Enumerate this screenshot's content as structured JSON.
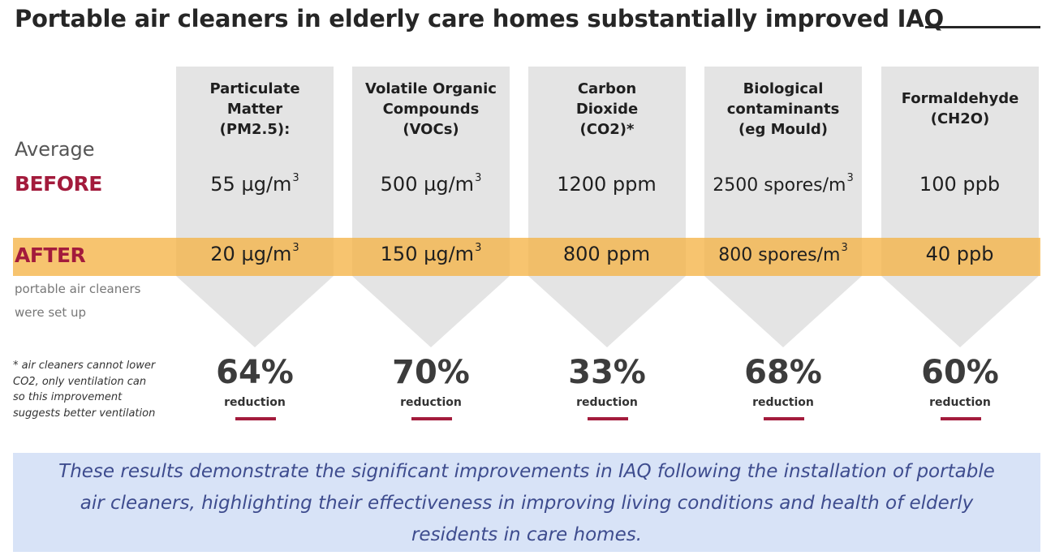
{
  "title": "Portable air cleaners in elderly care homes substantially improved IAQ",
  "row_labels": {
    "average": "Average",
    "before": "BEFORE",
    "after": "AFTER",
    "after_note": "portable air cleaners\nwere set up"
  },
  "columns": [
    {
      "heading": "Particulate\nMatter\n(PM2.5):",
      "before_num": "55 µg/m",
      "before_sup": "3",
      "after_num": "20 µg/m",
      "after_sup": "3",
      "reduction_pct": "64%",
      "reduction_label": "reduction"
    },
    {
      "heading": "Volatile Organic\nCompounds\n(VOCs)",
      "before_num": "500 µg/m",
      "before_sup": "3",
      "after_num": "150 µg/m",
      "after_sup": "3",
      "reduction_pct": "70%",
      "reduction_label": "reduction"
    },
    {
      "heading": "Carbon\nDioxide\n(CO2)*",
      "before_num": "1200 ppm",
      "before_sup": "",
      "after_num": "800 ppm",
      "after_sup": "",
      "reduction_pct": "33%",
      "reduction_label": "reduction"
    },
    {
      "heading": "Biological\ncontaminants\n(eg Mould)",
      "before_num": "2500 spores/m",
      "before_sup": "3",
      "after_num": "800 spores/m",
      "after_sup": "3",
      "reduction_pct": "68%",
      "reduction_label": "reduction"
    },
    {
      "heading": "Formaldehyde\n(CH2O)",
      "before_num": "100 ppb",
      "before_sup": "",
      "after_num": "40 ppb",
      "after_sup": "",
      "reduction_pct": "60%",
      "reduction_label": "reduction"
    }
  ],
  "footnote": "* air cleaners cannot lower\nCO2, only ventilation can\nso this improvement\nsuggests better ventilation",
  "conclusion": "These results demonstrate the significant improvements in IAQ following the installation of portable air cleaners, highlighting their effectiveness in improving living conditions and health of elderly residents in care homes.",
  "colors": {
    "accent_red": "#a31b3c",
    "highlight_band": "#f5b446",
    "arrow_gray": "#e4e4e4",
    "conclusion_bg": "#d8e3f7",
    "conclusion_text": "#3e4c8e"
  }
}
